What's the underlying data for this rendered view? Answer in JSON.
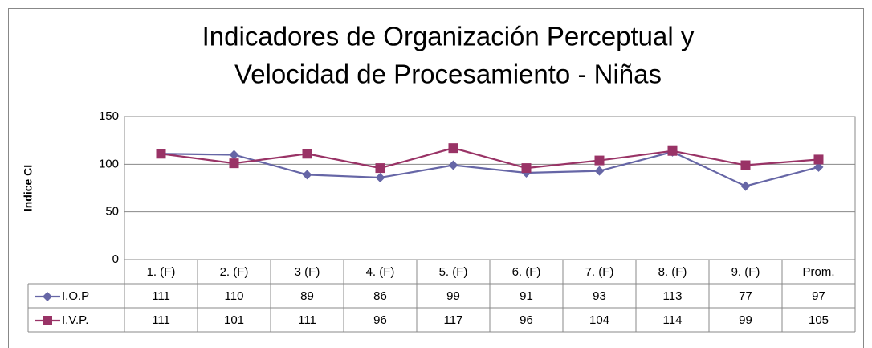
{
  "chart_data": {
    "type": "line",
    "title": [
      "Indicadores de Organización Perceptual y",
      "Velocidad de Procesamiento - Niñas"
    ],
    "y_label": "Indice CI",
    "categories": [
      "1. (F)",
      "2. (F)",
      "3 (F)",
      "4. (F)",
      "5. (F)",
      "6. (F)",
      "7. (F)",
      "8. (F)",
      "9. (F)",
      "Prom."
    ],
    "series": [
      {
        "name": "I.O.P",
        "color": "#6666a6",
        "marker": "diamond",
        "values": [
          111,
          110,
          89,
          86,
          99,
          91,
          93,
          113,
          77,
          97
        ]
      },
      {
        "name": "I.V.P.",
        "color": "#993366",
        "marker": "square",
        "values": [
          111,
          101,
          111,
          96,
          117,
          96,
          104,
          114,
          99,
          105
        ]
      }
    ],
    "ylim": [
      0,
      150
    ],
    "yticks": [
      0,
      50,
      100,
      150
    ],
    "grid": true,
    "data_table": true
  }
}
